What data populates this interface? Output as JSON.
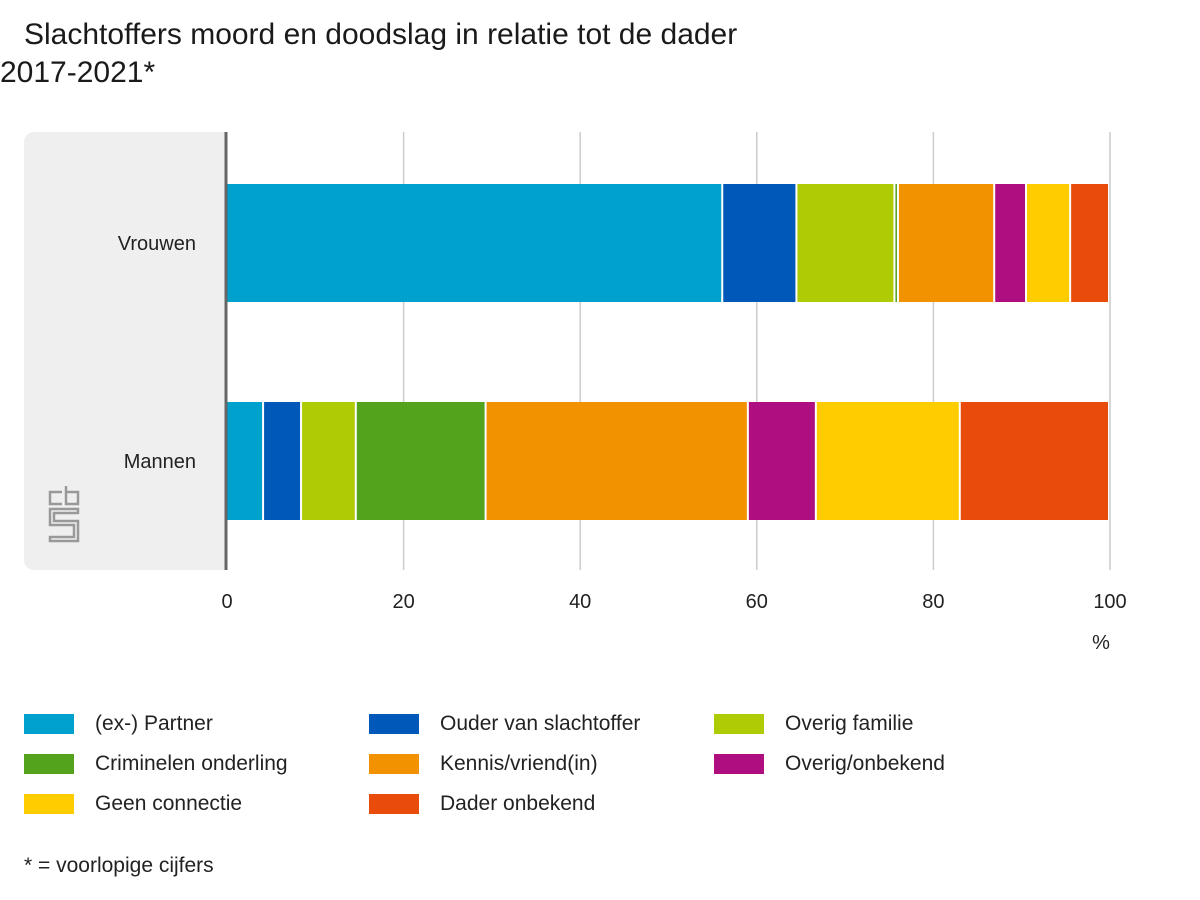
{
  "title": {
    "line1": "Slachtoffers moord en doodslag in relatie tot de dader",
    "line2": "2017-2021*"
  },
  "footnote": "* = voorlopige cijfers",
  "logo": "cbs",
  "chart_data": {
    "type": "bar",
    "orientation": "horizontal-stacked",
    "categories": [
      "Vrouwen",
      "Mannen"
    ],
    "xlabel": "%",
    "xlim": [
      0,
      100
    ],
    "xticks": [
      "0",
      "20",
      "40",
      "60",
      "80",
      "100"
    ],
    "grid": true,
    "legend_position": "bottom",
    "series": [
      {
        "name": "(ex-) Partner",
        "color": "#00a1cd",
        "values": [
          56.2,
          4.2
        ]
      },
      {
        "name": "Ouder van slachtoffer",
        "color": "#0058b8",
        "values": [
          8.4,
          4.3
        ]
      },
      {
        "name": "Overig familie",
        "color": "#afcb05",
        "values": [
          11.1,
          6.2
        ]
      },
      {
        "name": "Criminelen onderling",
        "color": "#53a31d",
        "values": [
          0.4,
          14.7
        ]
      },
      {
        "name": "Kennis/vriend(in)",
        "color": "#f39200",
        "values": [
          10.9,
          29.7
        ]
      },
      {
        "name": "Overig/onbekend",
        "color": "#af0e80",
        "values": [
          3.6,
          7.7
        ]
      },
      {
        "name": "Geen connectie",
        "color": "#ffcc00",
        "values": [
          5.0,
          16.3
        ]
      },
      {
        "name": "Dader onbekend",
        "color": "#e94c0a",
        "values": [
          4.4,
          16.9
        ]
      }
    ]
  }
}
